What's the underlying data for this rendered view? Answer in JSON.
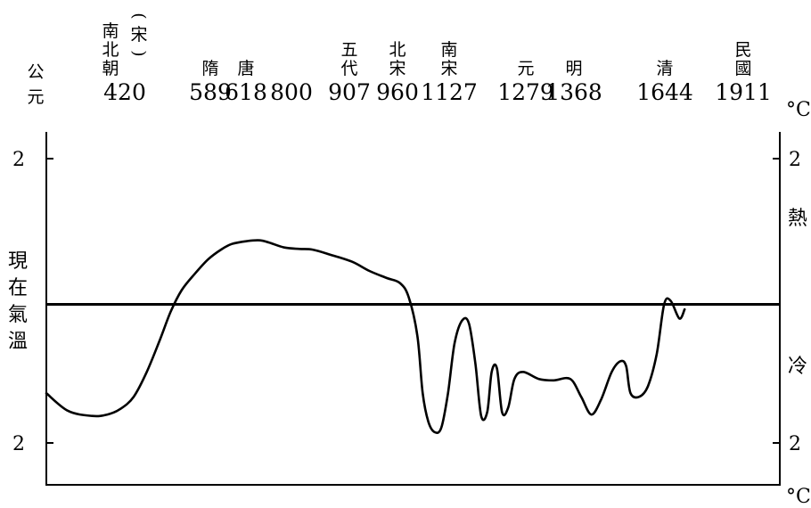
{
  "chart_data": {
    "type": "line",
    "title": "",
    "x_axis_label": "公元",
    "right_unit_label": "°C",
    "baseline_label": "現在氣溫",
    "right_side_labels": {
      "warm": "熱",
      "cold": "冷"
    },
    "y_tick_labels_left": [
      "2",
      "2"
    ],
    "y_tick_labels_right": [
      "2",
      "2"
    ],
    "bottom_right_unit_label": "°C",
    "x_ticks": [
      {
        "year": "420",
        "dynasty": [
          "南",
          "北",
          "朝"
        ],
        "dynasty_extra": [
          "(宋)"
        ]
      },
      {
        "year": "589",
        "dynasty": [
          "隋"
        ]
      },
      {
        "year": "618",
        "dynasty": [
          "唐"
        ]
      },
      {
        "year": "800",
        "dynasty": []
      },
      {
        "year": "907",
        "dynasty": [
          "五",
          "代"
        ]
      },
      {
        "year": "960",
        "dynasty": [
          "北",
          "宋"
        ]
      },
      {
        "year": "1127",
        "dynasty": [
          "南",
          "宋"
        ]
      },
      {
        "year": "1279",
        "dynasty": [
          "元"
        ]
      },
      {
        "year": "1368",
        "dynasty": [
          "明"
        ]
      },
      {
        "year": "1644",
        "dynasty": [
          "清"
        ]
      },
      {
        "year": "1911",
        "dynasty": [
          "民",
          "國"
        ]
      }
    ],
    "y_range": [
      -2,
      2
    ],
    "x_range": [
      300,
      1980
    ],
    "series": [
      {
        "values": [
          [
            300,
            -1.3
          ],
          [
            350,
            -1.55
          ],
          [
            405,
            -1.62
          ],
          [
            440,
            -1.6
          ],
          [
            470,
            -1.52
          ],
          [
            500,
            -1.35
          ],
          [
            530,
            -1.0
          ],
          [
            560,
            -0.55
          ],
          [
            585,
            -0.15
          ],
          [
            610,
            0.15
          ],
          [
            640,
            0.38
          ],
          [
            670,
            0.58
          ],
          [
            700,
            0.72
          ],
          [
            725,
            0.8
          ],
          [
            760,
            0.84
          ],
          [
            790,
            0.85
          ],
          [
            810,
            0.82
          ],
          [
            845,
            0.75
          ],
          [
            880,
            0.73
          ],
          [
            910,
            0.72
          ],
          [
            950,
            0.65
          ],
          [
            1000,
            0.55
          ],
          [
            1040,
            0.42
          ],
          [
            1080,
            0.32
          ],
          [
            1110,
            0.25
          ],
          [
            1130,
            0.05
          ],
          [
            1150,
            -0.5
          ],
          [
            1162,
            -1.3
          ],
          [
            1175,
            -1.7
          ],
          [
            1190,
            -1.85
          ],
          [
            1205,
            -1.78
          ],
          [
            1220,
            -1.3
          ],
          [
            1235,
            -0.6
          ],
          [
            1252,
            -0.28
          ],
          [
            1268,
            -0.32
          ],
          [
            1283,
            -0.9
          ],
          [
            1296,
            -1.62
          ],
          [
            1310,
            -1.56
          ],
          [
            1320,
            -1.0
          ],
          [
            1332,
            -0.95
          ],
          [
            1344,
            -1.57
          ],
          [
            1358,
            -1.5
          ],
          [
            1372,
            -1.1
          ],
          [
            1392,
            -1.0
          ],
          [
            1428,
            -1.1
          ],
          [
            1462,
            -1.12
          ],
          [
            1500,
            -1.1
          ],
          [
            1525,
            -1.35
          ],
          [
            1548,
            -1.6
          ],
          [
            1570,
            -1.4
          ],
          [
            1595,
            -1.0
          ],
          [
            1615,
            -0.85
          ],
          [
            1628,
            -0.92
          ],
          [
            1638,
            -1.3
          ],
          [
            1658,
            -1.35
          ],
          [
            1678,
            -1.2
          ],
          [
            1698,
            -0.75
          ],
          [
            1715,
            -0.05
          ],
          [
            1730,
            -0.0
          ],
          [
            1750,
            -0.25
          ],
          [
            1762,
            -0.12
          ]
        ]
      }
    ]
  }
}
